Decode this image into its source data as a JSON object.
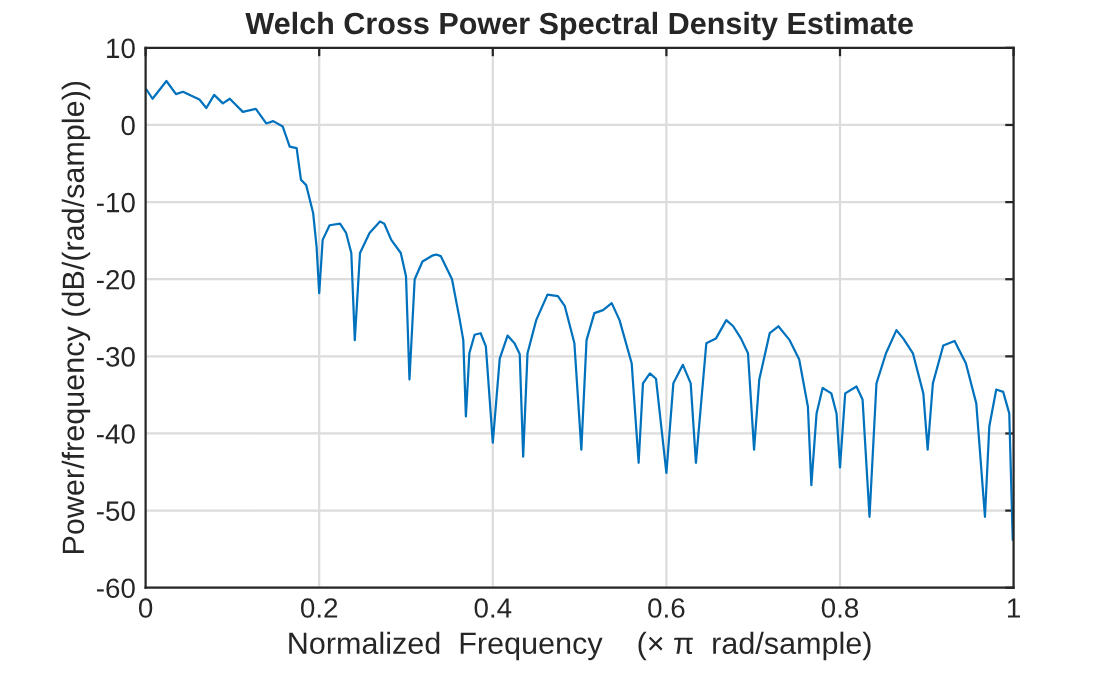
{
  "chart_data": {
    "type": "line",
    "title": "Welch Cross Power Spectral Density Estimate",
    "xlabel": "Normalized  Frequency    (× π  rad/sample)",
    "ylabel": "Power/frequency (dB/(rad/sample))",
    "xlim": [
      0,
      1
    ],
    "ylim": [
      -60,
      10
    ],
    "xticks": [
      0,
      0.2,
      0.4,
      0.6,
      0.8,
      1
    ],
    "yticks": [
      -60,
      -50,
      -40,
      -30,
      -20,
      -10,
      0,
      10
    ],
    "grid": true,
    "line_style": "solid",
    "marker": "none",
    "series": [
      {
        "color": "#0072bd",
        "x": [
          0.001,
          0.008,
          0.024,
          0.035,
          0.043,
          0.062,
          0.07,
          0.079,
          0.089,
          0.097,
          0.112,
          0.127,
          0.139,
          0.147,
          0.158,
          0.166,
          0.174,
          0.179,
          0.185,
          0.193,
          0.197,
          0.2,
          0.204,
          0.212,
          0.224,
          0.231,
          0.237,
          0.241,
          0.247,
          0.258,
          0.27,
          0.275,
          0.283,
          0.294,
          0.3,
          0.304,
          0.31,
          0.319,
          0.331,
          0.335,
          0.34,
          0.353,
          0.362,
          0.366,
          0.369,
          0.373,
          0.379,
          0.386,
          0.392,
          0.4,
          0.408,
          0.417,
          0.425,
          0.431,
          0.435,
          0.44,
          0.45,
          0.463,
          0.475,
          0.483,
          0.494,
          0.502,
          0.508,
          0.517,
          0.527,
          0.537,
          0.546,
          0.56,
          0.568,
          0.573,
          0.581,
          0.588,
          0.6,
          0.608,
          0.619,
          0.628,
          0.634,
          0.646,
          0.657,
          0.669,
          0.677,
          0.686,
          0.694,
          0.701,
          0.707,
          0.719,
          0.729,
          0.742,
          0.753,
          0.763,
          0.767,
          0.773,
          0.78,
          0.79,
          0.796,
          0.8,
          0.806,
          0.819,
          0.826,
          0.834,
          0.842,
          0.853,
          0.865,
          0.873,
          0.884,
          0.896,
          0.901,
          0.907,
          0.919,
          0.932,
          0.945,
          0.957,
          0.967,
          0.972,
          0.98,
          0.988,
          0.995,
          0.999
        ],
        "values": [
          4.6,
          3.4,
          5.7,
          4.0,
          4.3,
          3.3,
          2.2,
          3.9,
          2.8,
          3.4,
          1.7,
          2.1,
          0.2,
          0.5,
          -0.2,
          -2.8,
          -3,
          -7.1,
          -7.8,
          -11.4,
          -15.8,
          -21.8,
          -14.9,
          -13,
          -12.8,
          -14,
          -16.6,
          -27.9,
          -16.6,
          -14,
          -12.5,
          -12.8,
          -14.9,
          -16.6,
          -19.6,
          -33,
          -20,
          -17.7,
          -16.9,
          -16.8,
          -17,
          -20,
          -25.3,
          -27.9,
          -37.8,
          -29.6,
          -27.2,
          -27,
          -28.7,
          -41.2,
          -30.3,
          -27.3,
          -28.3,
          -29.7,
          -43,
          -29.6,
          -25.3,
          -22,
          -22.2,
          -23.5,
          -28.3,
          -42.1,
          -27.9,
          -24.4,
          -24,
          -23.1,
          -25.3,
          -30.9,
          -43.8,
          -33.5,
          -32.2,
          -32.9,
          -45.1,
          -33.5,
          -31.1,
          -33.5,
          -43.8,
          -28.3,
          -27.7,
          -25.3,
          -26.1,
          -27.7,
          -29.6,
          -42.1,
          -33,
          -27,
          -26.1,
          -27.9,
          -30.4,
          -36.5,
          -46.7,
          -37.4,
          -34.1,
          -34.8,
          -37.4,
          -44.4,
          -34.8,
          -33.9,
          -35.6,
          -50.8,
          -33.5,
          -29.6,
          -26.6,
          -27.7,
          -29.6,
          -34.8,
          -42.1,
          -33.5,
          -28.6,
          -28,
          -30.9,
          -36.1,
          -50.8,
          -39.1,
          -34.3,
          -34.6,
          -37.4,
          -53.8
        ]
      }
    ]
  }
}
